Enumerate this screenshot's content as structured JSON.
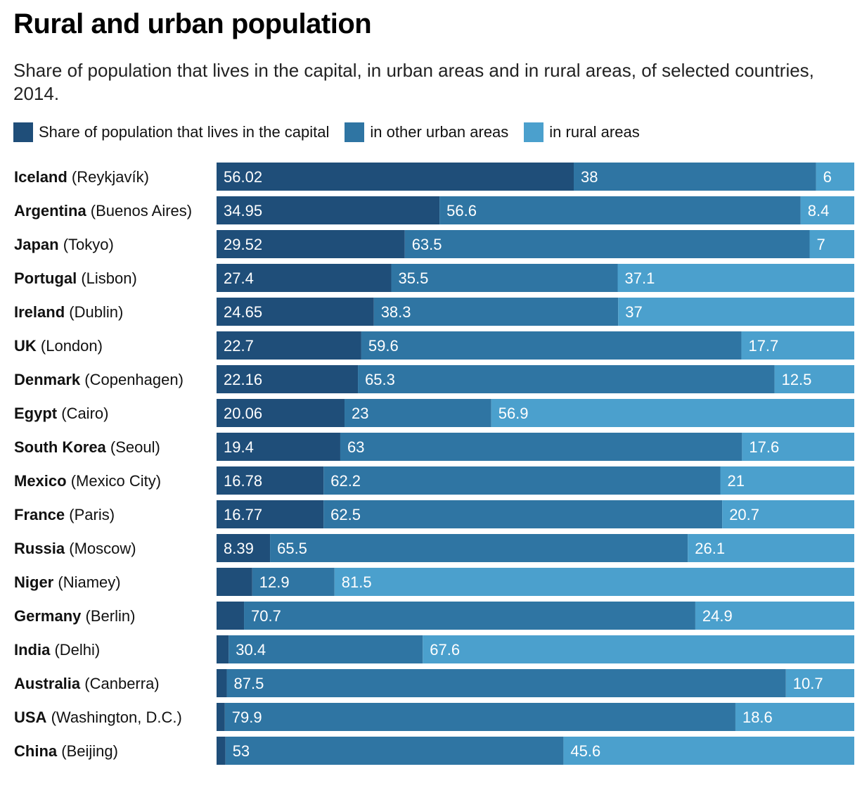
{
  "title": "Rural and urban population",
  "subtitle": "Share of population that lives in the capital, in urban areas and in rural areas, of selected countries, 2014.",
  "colors": {
    "capital": "#1f4e79",
    "urban": "#2f75a3",
    "rural": "#4ba0cd"
  },
  "legend": [
    {
      "key": "capital",
      "label": "Share of population that lives in the capital"
    },
    {
      "key": "urban",
      "label": "in other urban areas"
    },
    {
      "key": "rural",
      "label": "in rural areas"
    }
  ],
  "chart_data": {
    "type": "bar",
    "orientation": "horizontal",
    "stacked": true,
    "xlim": [
      0,
      100
    ],
    "categories": [
      {
        "country": "Iceland",
        "capital": "Reykjavík"
      },
      {
        "country": "Argentina",
        "capital": "Buenos Aires"
      },
      {
        "country": "Japan",
        "capital": "Tokyo"
      },
      {
        "country": "Portugal",
        "capital": "Lisbon"
      },
      {
        "country": "Ireland",
        "capital": "Dublin"
      },
      {
        "country": "UK",
        "capital": "London"
      },
      {
        "country": "Denmark",
        "capital": "Copenhagen"
      },
      {
        "country": "Egypt",
        "capital": "Cairo"
      },
      {
        "country": "South Korea",
        "capital": "Seoul"
      },
      {
        "country": "Mexico",
        "capital": "Mexico City"
      },
      {
        "country": "France",
        "capital": "Paris"
      },
      {
        "country": "Russia",
        "capital": "Moscow"
      },
      {
        "country": "Niger",
        "capital": "Niamey"
      },
      {
        "country": "Germany",
        "capital": "Berlin"
      },
      {
        "country": "India",
        "capital": "Delhi"
      },
      {
        "country": "Australia",
        "capital": "Canberra"
      },
      {
        "country": "USA",
        "capital": "Washington, D.C."
      },
      {
        "country": "China",
        "capital": "Beijing"
      }
    ],
    "series": [
      {
        "name": "Share of population that lives in the capital",
        "key": "capital",
        "values": [
          56.02,
          34.95,
          29.52,
          27.4,
          24.65,
          22.7,
          22.16,
          20.06,
          19.4,
          16.78,
          16.77,
          8.39,
          5.6,
          4.3,
          1.9,
          1.6,
          1.3,
          1.4
        ],
        "labels": [
          "56.02",
          "34.95",
          "29.52",
          "27.4",
          "24.65",
          "22.7",
          "22.16",
          "20.06",
          "19.4",
          "16.78",
          "16.77",
          "8.39",
          "",
          "",
          "",
          "",
          "",
          ""
        ]
      },
      {
        "name": "in other urban areas",
        "key": "urban",
        "values": [
          38,
          56.6,
          63.5,
          35.5,
          38.3,
          59.6,
          65.3,
          23,
          63,
          62.2,
          62.5,
          65.5,
          12.9,
          70.7,
          30.4,
          87.5,
          79.9,
          53
        ],
        "labels": [
          "38",
          "56.6",
          "63.5",
          "35.5",
          "38.3",
          "59.6",
          "65.3",
          "23",
          "63",
          "62.2",
          "62.5",
          "65.5",
          "12.9",
          "70.7",
          "30.4",
          "87.5",
          "79.9",
          "53"
        ]
      },
      {
        "name": "in rural areas",
        "key": "rural",
        "values": [
          6,
          8.4,
          7,
          37.1,
          37,
          17.7,
          12.5,
          56.9,
          17.6,
          21,
          20.7,
          26.1,
          81.5,
          24.9,
          67.6,
          10.7,
          18.6,
          45.6
        ],
        "labels": [
          "6",
          "8.4",
          "7",
          "37.1",
          "37",
          "17.7",
          "12.5",
          "56.9",
          "17.6",
          "21",
          "20.7",
          "26.1",
          "81.5",
          "24.9",
          "67.6",
          "10.7",
          "18.6",
          "45.6"
        ]
      }
    ]
  }
}
